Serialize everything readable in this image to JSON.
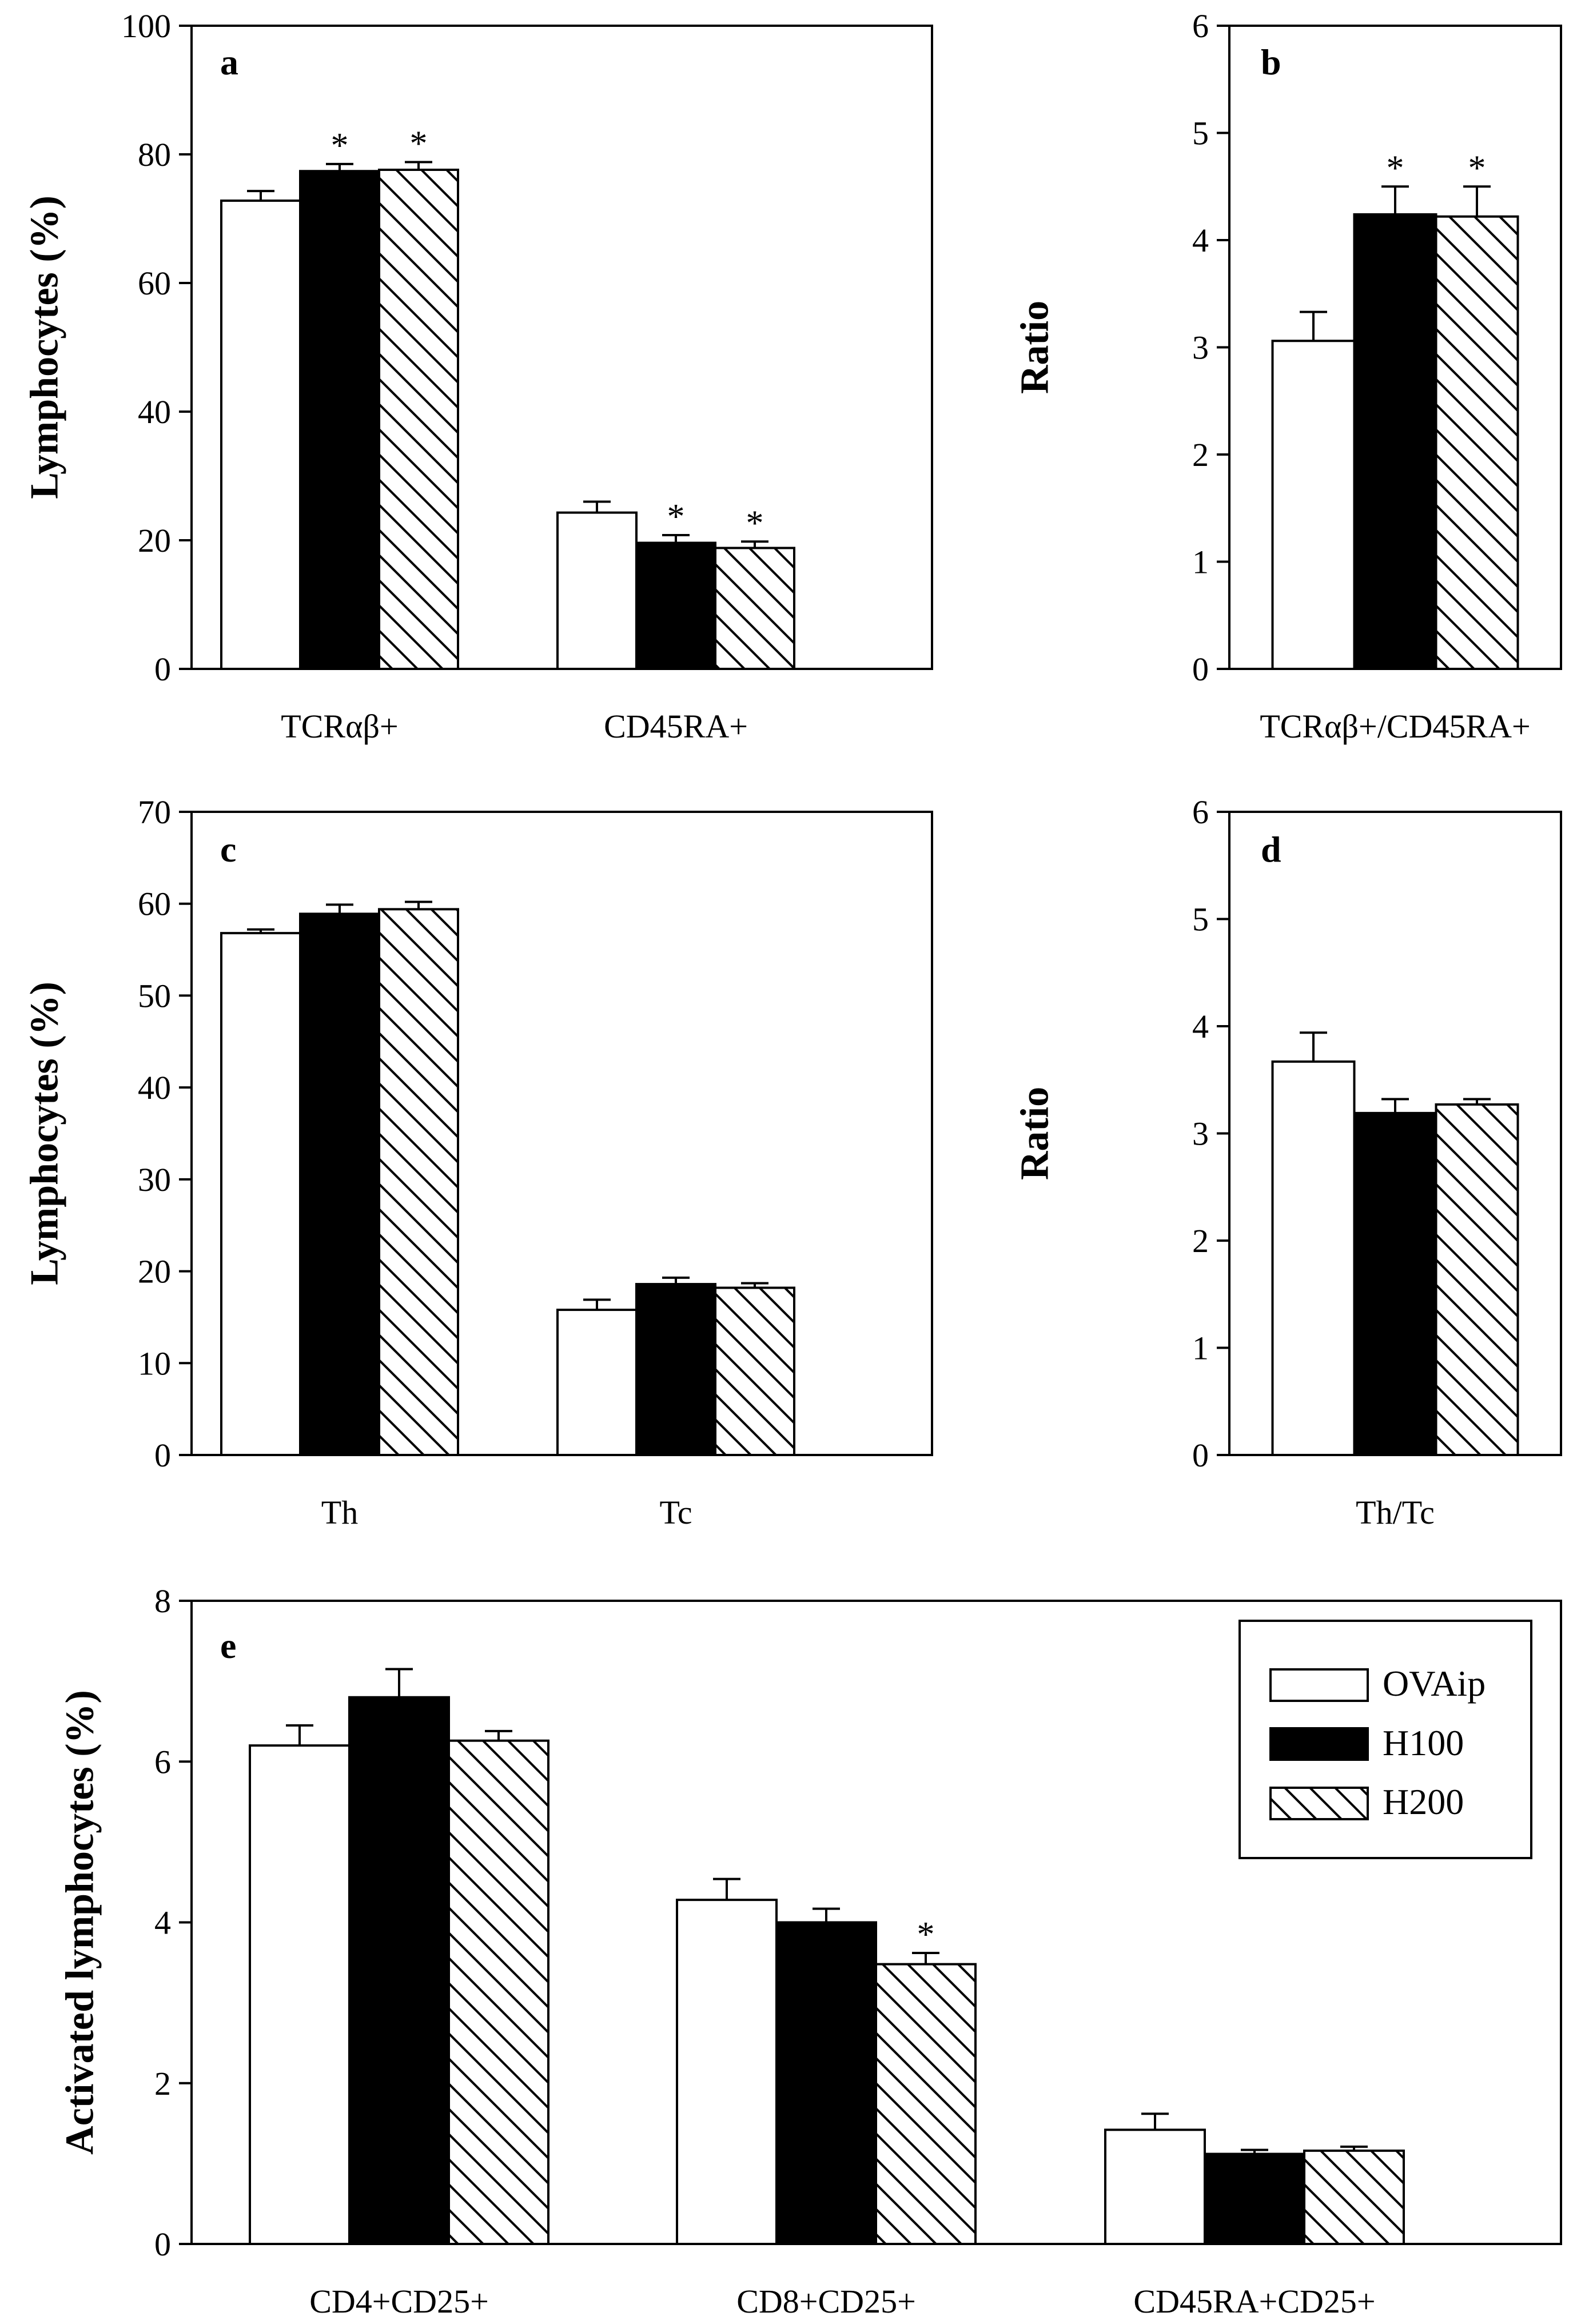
{
  "legend": {
    "position": "top-right",
    "panel": "e",
    "entries": [
      {
        "name": "OVAip",
        "fill": "#ffffff",
        "pattern": "open"
      },
      {
        "name": "H100",
        "fill": "#000000",
        "pattern": "solid"
      },
      {
        "name": "H200",
        "fill": "#ffffff",
        "pattern": "hatched"
      }
    ]
  },
  "chart_data": [
    {
      "panel": "a",
      "type": "bar",
      "title": "",
      "xlabel": "",
      "ylabel": "Lymphocytes (%)",
      "ylim": [
        0,
        100
      ],
      "yticks": [
        0,
        20,
        40,
        60,
        80,
        100
      ],
      "categories": [
        "TCRαβ+",
        "CD45RA+"
      ],
      "series": [
        {
          "name": "OVAip",
          "values": [
            72.8,
            24.3
          ],
          "errors": [
            1.5,
            1.7
          ],
          "sig": [
            false,
            false
          ]
        },
        {
          "name": "H100",
          "values": [
            77.4,
            19.6
          ],
          "errors": [
            1.1,
            1.2
          ],
          "sig": [
            true,
            true
          ]
        },
        {
          "name": "H200",
          "values": [
            77.6,
            18.8
          ],
          "errors": [
            1.2,
            1.0
          ],
          "sig": [
            true,
            true
          ]
        }
      ]
    },
    {
      "panel": "b",
      "type": "bar",
      "title": "",
      "xlabel": "",
      "ylabel": "Ratio",
      "ylim": [
        0,
        6
      ],
      "yticks": [
        0,
        1,
        2,
        3,
        4,
        5,
        6
      ],
      "categories": [
        "TCRαβ+/CD45RA+"
      ],
      "series": [
        {
          "name": "OVAip",
          "values": [
            3.06
          ],
          "errors": [
            0.27
          ],
          "sig": [
            false
          ]
        },
        {
          "name": "H100",
          "values": [
            4.24
          ],
          "errors": [
            0.26
          ],
          "sig": [
            true
          ]
        },
        {
          "name": "H200",
          "values": [
            4.22
          ],
          "errors": [
            0.28
          ],
          "sig": [
            true
          ]
        }
      ]
    },
    {
      "panel": "c",
      "type": "bar",
      "title": "",
      "xlabel": "",
      "ylabel": "Lymphocytes (%)",
      "ylim": [
        0,
        70
      ],
      "yticks": [
        0,
        10,
        20,
        30,
        40,
        50,
        60,
        70
      ],
      "categories": [
        "Th",
        "Tc"
      ],
      "series": [
        {
          "name": "OVAip",
          "values": [
            56.8,
            15.8
          ],
          "errors": [
            0.4,
            1.1
          ],
          "sig": [
            false,
            false
          ]
        },
        {
          "name": "H100",
          "values": [
            58.9,
            18.6
          ],
          "errors": [
            1.0,
            0.7
          ],
          "sig": [
            false,
            false
          ]
        },
        {
          "name": "H200",
          "values": [
            59.4,
            18.2
          ],
          "errors": [
            0.8,
            0.5
          ],
          "sig": [
            false,
            false
          ]
        }
      ]
    },
    {
      "panel": "d",
      "type": "bar",
      "title": "",
      "xlabel": "",
      "ylabel": "Ratio",
      "ylim": [
        0,
        6
      ],
      "yticks": [
        0,
        1,
        2,
        3,
        4,
        5,
        6
      ],
      "categories": [
        "Th/Tc"
      ],
      "series": [
        {
          "name": "OVAip",
          "values": [
            3.67
          ],
          "errors": [
            0.27
          ],
          "sig": [
            false
          ]
        },
        {
          "name": "H100",
          "values": [
            3.19
          ],
          "errors": [
            0.13
          ],
          "sig": [
            false
          ]
        },
        {
          "name": "H200",
          "values": [
            3.27
          ],
          "errors": [
            0.05
          ],
          "sig": [
            false
          ]
        }
      ]
    },
    {
      "panel": "e",
      "type": "bar",
      "title": "",
      "xlabel": "",
      "ylabel": "Activated lymphocytes (%)",
      "ylim": [
        0,
        8
      ],
      "yticks": [
        0,
        2,
        4,
        6,
        8
      ],
      "categories": [
        "CD4+CD25+",
        "CD8+CD25+",
        "CD45RA+CD25+"
      ],
      "series": [
        {
          "name": "OVAip",
          "values": [
            6.2,
            4.28,
            1.42
          ],
          "errors": [
            0.25,
            0.26,
            0.2
          ],
          "sig": [
            false,
            false,
            false
          ]
        },
        {
          "name": "H100",
          "values": [
            6.8,
            4.0,
            1.12
          ],
          "errors": [
            0.35,
            0.17,
            0.05
          ],
          "sig": [
            false,
            false,
            false
          ]
        },
        {
          "name": "H200",
          "values": [
            6.26,
            3.48,
            1.16
          ],
          "errors": [
            0.12,
            0.14,
            0.05
          ],
          "sig": [
            false,
            true,
            false
          ]
        }
      ]
    }
  ]
}
